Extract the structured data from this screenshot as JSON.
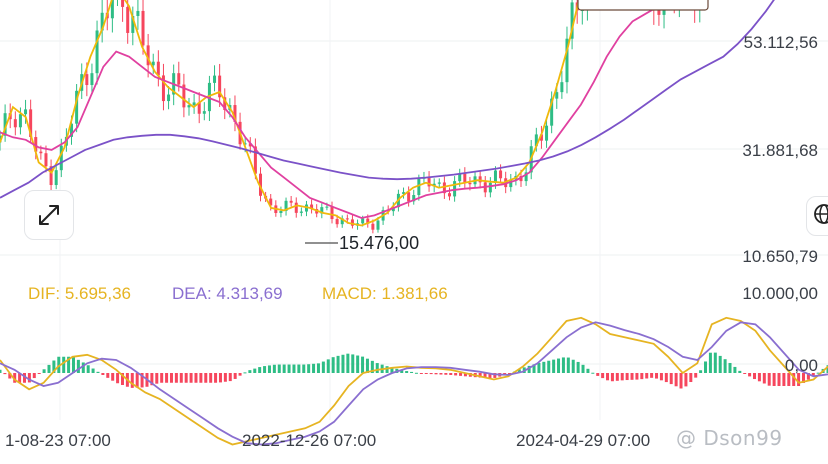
{
  "price_axis": {
    "ticks": [
      "53.112,56",
      "31.881,68",
      "10.650,79"
    ]
  },
  "macd_axis": {
    "ticks": [
      "10.000,00",
      "0,00"
    ]
  },
  "time_axis": {
    "labels": [
      "1-08-23 07:00",
      "2022-12-26 07:00",
      "2024-04-29 07:00"
    ]
  },
  "min_marker": {
    "label": "15.476,00"
  },
  "macd_legend": {
    "dif": "DIF: 5.695,36",
    "dea": "DEA: 4.313,69",
    "macd": "MACD: 1.381,66"
  },
  "watermark": "@ Dson99",
  "icons": {
    "expand": "expand-arrows-icon",
    "globe": "globe-icon"
  },
  "colors": {
    "up": "#2ebd85",
    "down": "#f6465d",
    "ma_fast": "#f0b90b",
    "ma_mid": "#e040a0",
    "ma_slow": "#7b52c8",
    "dif": "#e6b422",
    "dea": "#8a6fd0"
  },
  "chart_data": [
    {
      "type": "candlestick",
      "title": "",
      "y_ticks": [
        53112.56,
        31881.68,
        10650.79
      ],
      "x_tick_labels": [
        "1-08-23 07:00",
        "2022-12-26 07:00",
        "2024-04-29 07:00"
      ],
      "annotations": [
        "15.476,00"
      ],
      "series": [
        {
          "name": "",
          "color": "#f0b90b",
          "values": [
            33000,
            40000,
            38000,
            29000,
            27000,
            32000,
            42000,
            50000,
            56000,
            64000,
            60000,
            52000,
            47000,
            44000,
            42000,
            40000,
            42000,
            43000,
            39000,
            32000,
            25000,
            20000,
            19500,
            20500,
            20000,
            19000,
            18500,
            17000,
            16500,
            17500,
            19000,
            22000,
            24000,
            25000,
            24000,
            24500,
            25000,
            25500,
            25200,
            25000,
            26000,
            29000,
            35000,
            43000,
            52000,
            63000,
            69000,
            70000,
            69000,
            67000,
            64000,
            63000,
            62000,
            64000,
            66000,
            67000
          ]
        },
        {
          "name": "",
          "color": "#e040a0",
          "values": [
            35000,
            34000,
            33500,
            32000,
            31500,
            33000,
            36000,
            42000,
            48000,
            51000,
            50000,
            48000,
            46000,
            45000,
            44000,
            43000,
            42000,
            41000,
            38000,
            34000,
            31000,
            28000,
            26000,
            24000,
            22000,
            21000,
            20000,
            19000,
            18000,
            18500,
            19500,
            20500,
            21500,
            22500,
            23000,
            23500,
            23800,
            24000,
            24300,
            24700,
            25500,
            27000,
            30000,
            33500,
            37000,
            40500,
            45000,
            50000,
            54000,
            57000,
            58500,
            60000,
            61000,
            62500,
            63500,
            64500
          ]
        },
        {
          "name": "",
          "color": "#7b52c8",
          "values": [
            22000,
            23500,
            25000,
            27000,
            28500,
            30000,
            31500,
            32500,
            33500,
            34000,
            34300,
            34500,
            34500,
            34200,
            33800,
            33200,
            32500,
            31800,
            31000,
            30200,
            29400,
            28800,
            28200,
            27600,
            27000,
            26500,
            26000,
            25800,
            25700,
            25800,
            26000,
            26300,
            26600,
            27000,
            27400,
            27800,
            28300,
            28800,
            29400,
            30200,
            31200,
            32500,
            34000,
            35700,
            37500,
            39500,
            41500,
            43500,
            45500,
            47000,
            48500,
            50000,
            52500,
            55500,
            59000,
            63000
          ]
        }
      ]
    },
    {
      "type": "bar",
      "title": "",
      "y_ticks": [
        10000,
        0
      ],
      "series": [
        {
          "name": "DIF",
          "value": 5695.36,
          "color": "#e6b422",
          "values": [
            2000,
            -1000,
            -2500,
            -1500,
            1000,
            2500,
            2800,
            2000,
            500,
            -1500,
            -3000,
            -4000,
            -5500,
            -7000,
            -8500,
            -10000,
            -11000,
            -10500,
            -10000,
            -9500,
            -9000,
            -8500,
            -7500,
            -5000,
            -2000,
            0,
            500,
            800,
            1000,
            800,
            700,
            500,
            0,
            -500,
            -1000,
            -500,
            1000,
            3000,
            5500,
            8000,
            8500,
            7500,
            6000,
            5500,
            5000,
            4500,
            2500,
            0,
            1500,
            7500,
            8500,
            8000,
            6500,
            3500,
            1000,
            -1500,
            -1000,
            1000
          ]
        },
        {
          "name": "DEA",
          "value": 4313.69,
          "color": "#8a6fd0",
          "values": [
            1500,
            500,
            -1000,
            -2000,
            -1500,
            0,
            1500,
            2200,
            2000,
            800,
            -800,
            -2500,
            -4000,
            -5500,
            -7000,
            -8500,
            -9800,
            -10800,
            -11000,
            -10800,
            -10300,
            -9800,
            -9000,
            -7500,
            -5000,
            -2500,
            -1000,
            0,
            700,
            900,
            900,
            800,
            500,
            200,
            -200,
            -300,
            200,
            1500,
            3500,
            5500,
            7000,
            7800,
            7300,
            6600,
            6000,
            5200,
            4000,
            2500,
            2000,
            4000,
            6500,
            7800,
            7500,
            5500,
            3000,
            500,
            -500,
            -200
          ]
        },
        {
          "name": "MACD",
          "value": 1381.66,
          "values": [
            500,
            -1500,
            -1500,
            500,
            2500,
            2500,
            1300,
            -200,
            -1500,
            -2300,
            -2200,
            -1500,
            -1500,
            -1500,
            -1500,
            -1500,
            -1200,
            300,
            1000,
            1300,
            1300,
            1300,
            1500,
            2500,
            3000,
            2500,
            1500,
            800,
            300,
            -100,
            -200,
            -300,
            -500,
            -700,
            -800,
            -200,
            800,
            1500,
            2000,
            2500,
            1500,
            -300,
            -1300,
            -1100,
            -1000,
            -700,
            -1500,
            -2500,
            -500,
            3500,
            2000,
            200,
            -1000,
            -2000,
            -2000,
            -2000,
            -500,
            1200
          ]
        }
      ]
    }
  ]
}
